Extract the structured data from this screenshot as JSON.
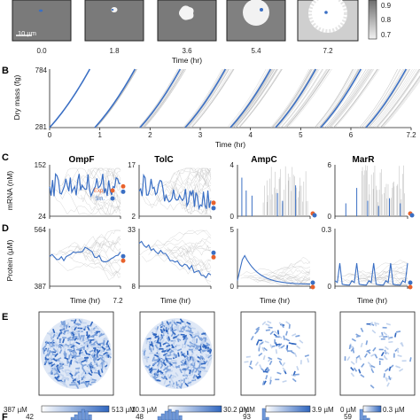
{
  "panel_a": {
    "times": [
      "0.0",
      "1.8",
      "3.6",
      "5.4",
      "7.2"
    ],
    "xlabel": "Time (hr)",
    "scalebar_label": "10 µm",
    "colorbar_ticks": [
      "0.9",
      "0.8",
      "0.7"
    ]
  },
  "panel_b": {
    "letter": "B",
    "ylabel": "Dry mass (fg)",
    "xlabel": "Time (hr)",
    "yticks": [
      "784",
      "281"
    ]
  },
  "panel_c": {
    "letter": "C",
    "ylabel": "mRNA (nM)",
    "legend": [
      "Exp.",
      "Sm."
    ],
    "genes": [
      {
        "name": "OmpF",
        "ymax": "152",
        "ymin": "24"
      },
      {
        "name": "TolC",
        "ymax": "17",
        "ymin": "2"
      },
      {
        "name": "AmpC",
        "ymax": "4",
        "ymin": "0"
      },
      {
        "name": "MarR",
        "ymax": "6",
        "ymin": "0"
      }
    ]
  },
  "panel_d": {
    "letter": "D",
    "ylabel": "Protein (µM)",
    "xlabel": "Time (hr)",
    "xtick_end": "7.2",
    "genes": [
      {
        "ymax": "564",
        "ymin": "387"
      },
      {
        "ymax": "33",
        "ymin": "8"
      },
      {
        "ymax": "5",
        "ymin": "0"
      },
      {
        "ymax": "0.3",
        "ymin": "0"
      }
    ]
  },
  "panel_e": {
    "letter": "E",
    "colorbars": [
      {
        "min": "387 µM",
        "max": "513 µM"
      },
      {
        "min": "10.3 µM",
        "max": "30.2 µM"
      },
      {
        "min": "0 µM",
        "max": "3.9 µM"
      },
      {
        "min": "0 µM",
        "max": "0.3 µM"
      }
    ]
  },
  "panel_f": {
    "letter": "F",
    "ymax": [
      "42",
      "48",
      "93",
      "59"
    ]
  },
  "colors": {
    "sim": "#3a6fc4",
    "exp": "#e8622c",
    "trace": "#b8b8b8",
    "microscopy_bg": "#7a7a7a",
    "microscopy_late": "#cfcfcf"
  },
  "chart_data": [
    {
      "type": "line",
      "panel": "B",
      "ylabel": "Dry mass (fg)",
      "xlabel": "Time (hr)",
      "xlim": [
        0,
        7.2
      ],
      "ylim": [
        281,
        784
      ],
      "xticks": [
        0,
        1,
        2,
        3,
        4,
        5,
        6,
        7.2
      ],
      "series": [
        {
          "name": "Sm.",
          "values": [
            [
              0.0,
              281,
              0.8,
              784
            ],
            [
              0.9,
              281,
              1.7,
              784
            ],
            [
              1.8,
              281,
              2.6,
              784
            ],
            [
              2.7,
              281,
              3.5,
              784
            ],
            [
              3.6,
              281,
              4.4,
              784
            ],
            [
              4.5,
              281,
              5.3,
              784
            ],
            [
              5.4,
              281,
              6.2,
              784
            ],
            [
              6.3,
              281,
              7.1,
              784
            ]
          ]
        }
      ]
    },
    {
      "type": "line",
      "panel": "C",
      "ylabel": "mRNA (nM)",
      "genes": [
        "OmpF",
        "TolC",
        "AmpC",
        "MarR"
      ],
      "ylims": [
        [
          24,
          152
        ],
        [
          2,
          17
        ],
        [
          0,
          4
        ],
        [
          0,
          6
        ]
      ],
      "xlim": [
        0,
        7.2
      ],
      "legend": [
        "Exp.",
        "Sm."
      ]
    },
    {
      "type": "line",
      "panel": "D",
      "ylabel": "Protein (µM)",
      "xlabel": "Time (hr)",
      "ylims": [
        [
          387,
          564
        ],
        [
          8,
          33
        ],
        [
          0,
          5
        ],
        [
          0,
          0.3
        ]
      ],
      "xlim": [
        0,
        7.2
      ]
    },
    {
      "type": "bar",
      "panel": "F",
      "ymax": [
        42,
        48,
        93,
        59
      ]
    }
  ]
}
